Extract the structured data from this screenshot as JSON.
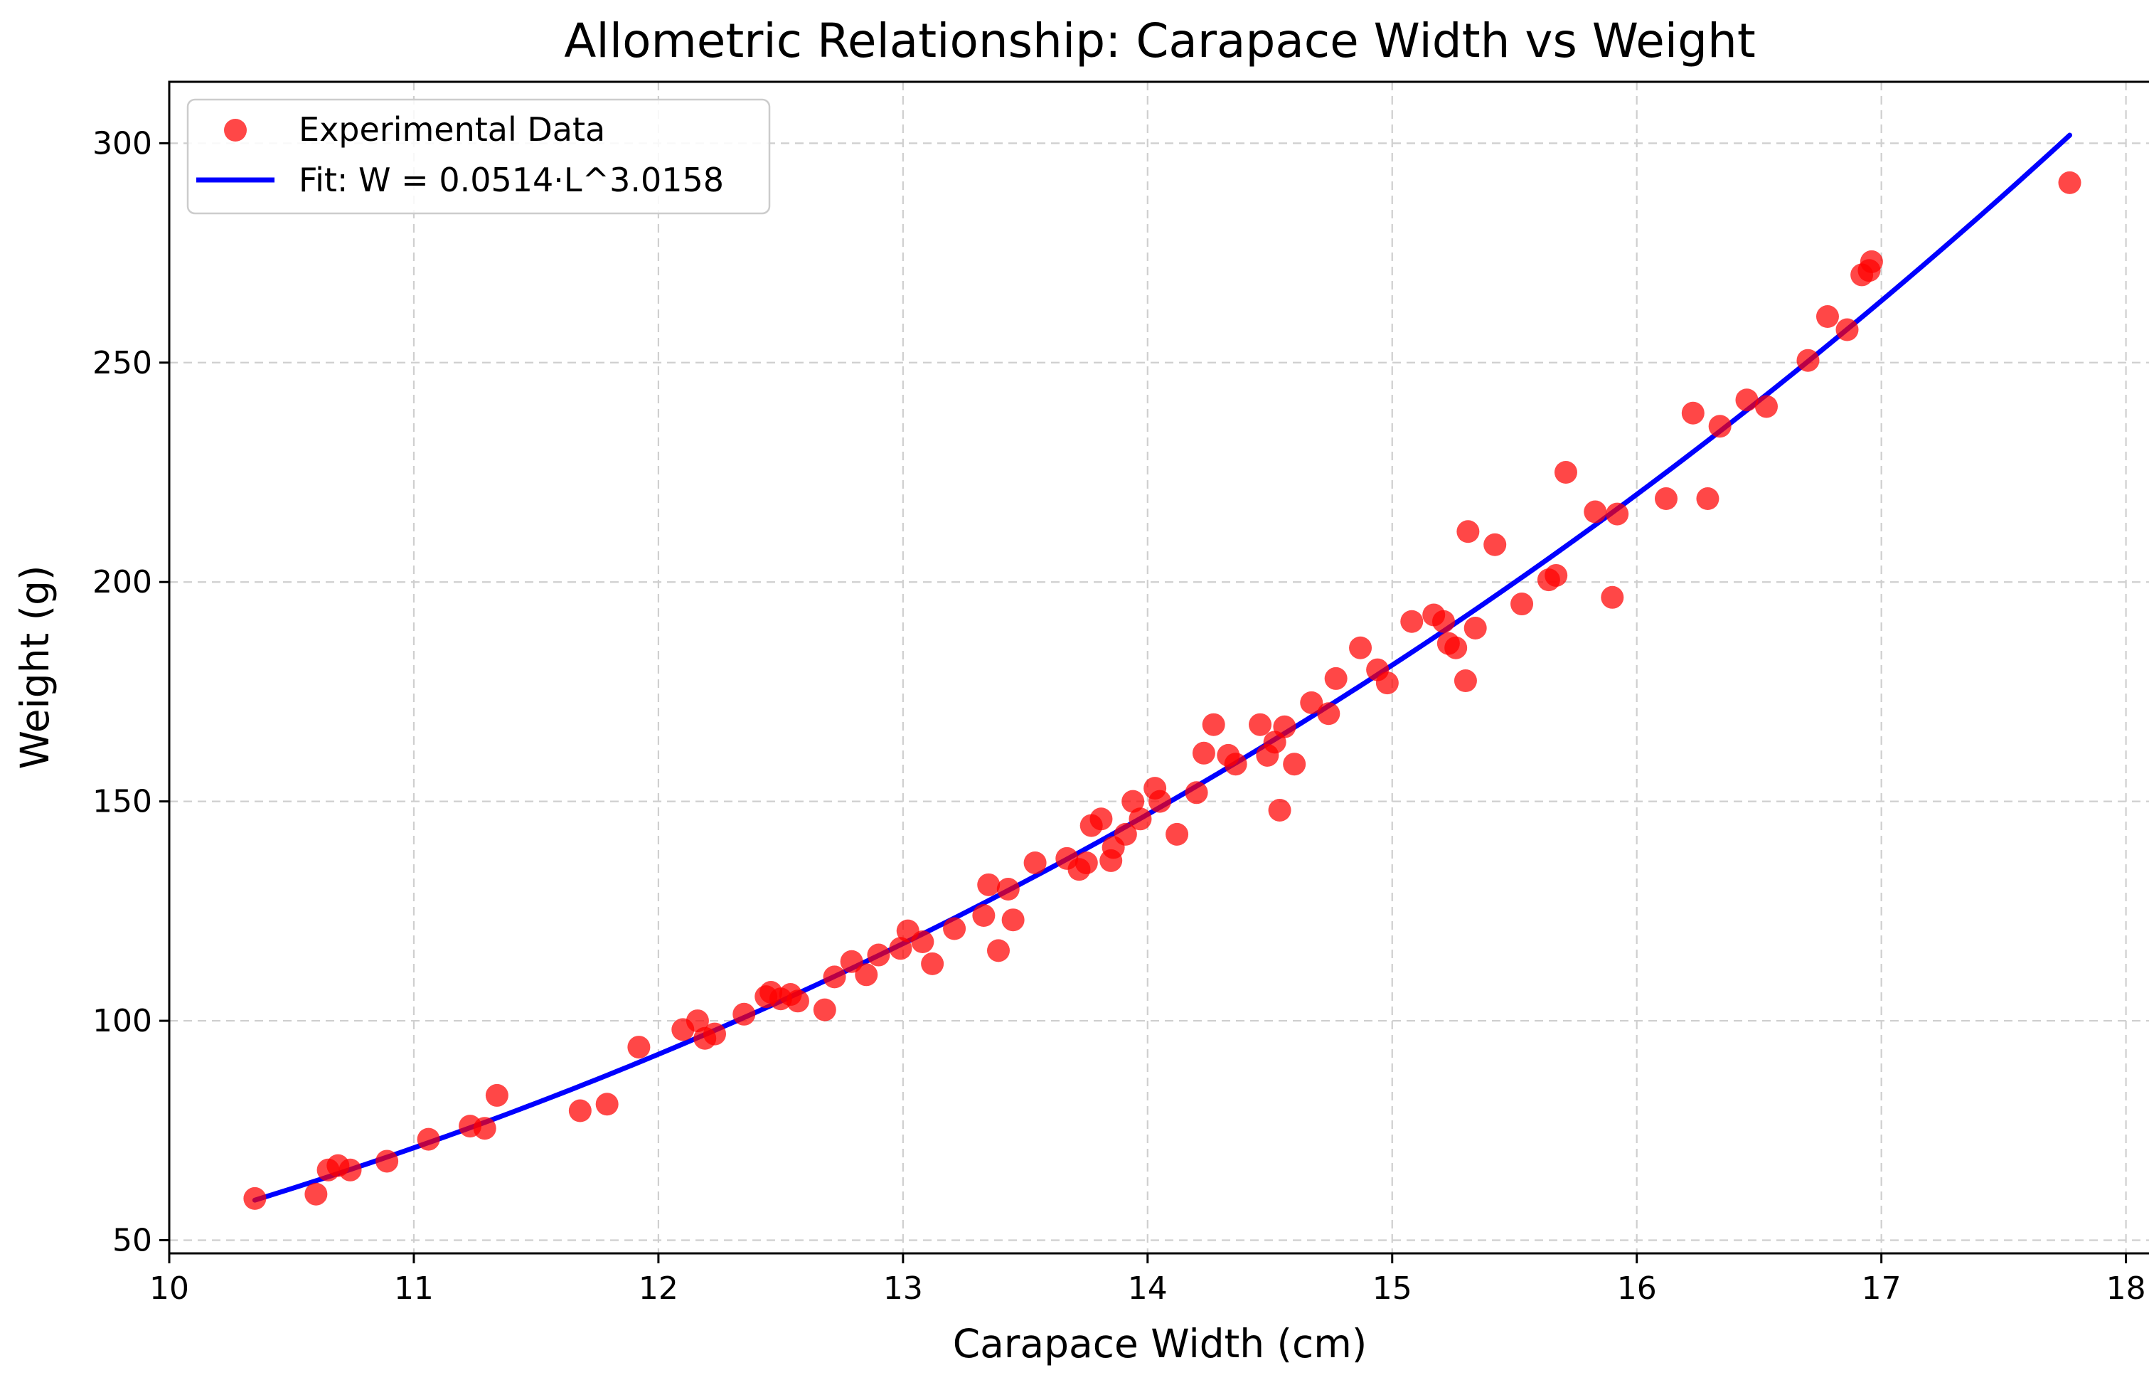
{
  "chart_data": {
    "type": "scatter",
    "title": "Allometric Relationship: Carapace Width vs Weight",
    "xlabel": "Carapace Width (cm)",
    "ylabel": "Weight (g)",
    "xlim": [
      10,
      18.1
    ],
    "ylim": [
      47,
      314
    ],
    "xticks": [
      10,
      11,
      12,
      13,
      14,
      15,
      16,
      17,
      18
    ],
    "yticks": [
      50,
      100,
      150,
      200,
      250,
      300
    ],
    "grid": true,
    "legend_position": "top-left",
    "colors": {
      "points": "#ff0000",
      "fit": "#0000ff"
    },
    "series": [
      {
        "name": "Experimental Data",
        "kind": "scatter",
        "x": [
          10.35,
          10.6,
          10.65,
          10.69,
          10.74,
          10.89,
          11.06,
          11.23,
          11.29,
          11.34,
          11.68,
          11.79,
          11.92,
          12.1,
          12.16,
          12.19,
          12.23,
          12.35,
          12.44,
          12.46,
          12.5,
          12.54,
          12.57,
          12.68,
          12.72,
          12.79,
          12.85,
          12.9,
          12.99,
          13.02,
          13.08,
          13.12,
          13.21,
          13.33,
          13.35,
          13.39,
          13.43,
          13.45,
          13.54,
          13.67,
          13.72,
          13.75,
          13.77,
          13.81,
          13.85,
          13.86,
          13.91,
          13.94,
          13.97,
          14.03,
          14.05,
          14.12,
          14.2,
          14.23,
          14.27,
          14.33,
          14.36,
          14.46,
          14.49,
          14.52,
          14.54,
          14.56,
          14.6,
          14.67,
          14.74,
          14.77,
          14.87,
          14.94,
          14.98,
          15.08,
          15.17,
          15.21,
          15.23,
          15.26,
          15.3,
          15.31,
          15.34,
          15.42,
          15.53,
          15.64,
          15.67,
          15.71,
          15.83,
          15.9,
          15.92,
          16.12,
          16.23,
          16.29,
          16.34,
          16.45,
          16.53,
          16.7,
          16.78,
          16.86,
          16.92,
          16.95,
          16.96,
          17.77
        ],
        "y": [
          59.5,
          60.5,
          66,
          67,
          66,
          68,
          73,
          76,
          75.5,
          83,
          79.5,
          81,
          94,
          98,
          100,
          96,
          97,
          101.5,
          105.5,
          106.5,
          105,
          106,
          104.5,
          102.5,
          110,
          113.5,
          110.5,
          115,
          116.5,
          120.5,
          118,
          113,
          121,
          124,
          131,
          116,
          130,
          123,
          136,
          137,
          134.5,
          136,
          144.5,
          146,
          136.5,
          139.5,
          142.5,
          150,
          146,
          153,
          150,
          142.5,
          152,
          161,
          167.5,
          160.5,
          158.5,
          167.5,
          160.5,
          163.5,
          148,
          167,
          158.5,
          172.5,
          170,
          178,
          185,
          180,
          177,
          191,
          192.5,
          191,
          186,
          185,
          177.5,
          211.5,
          189.5,
          208.5,
          195,
          200.5,
          201.5,
          225,
          216,
          196.5,
          215.5,
          219,
          238.5,
          219,
          235.5,
          241.5,
          240,
          250.5,
          260.5,
          257.5,
          270,
          271,
          273,
          291
        ]
      },
      {
        "name": "Fit: W = 0.0514·L^3.0158",
        "kind": "line",
        "a": 0.0514,
        "b": 3.0158,
        "x_range": [
          10.35,
          17.77
        ]
      }
    ]
  }
}
